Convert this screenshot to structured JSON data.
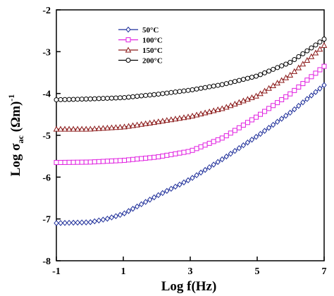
{
  "chart_data": {
    "type": "line",
    "xlabel": "Log f(Hz)",
    "ylabel_main": "Log σ",
    "ylabel_sub": "ac",
    "ylabel_unit": " (Ωm)",
    "ylabel_sup": "-1",
    "xlim": [
      -1,
      7
    ],
    "ylim": [
      -8,
      -2
    ],
    "x_ticks": [
      -1,
      1,
      3,
      5,
      7
    ],
    "y_ticks": [
      -8,
      -7,
      -6,
      -5,
      -4,
      -3,
      -2
    ],
    "grid": false,
    "legend_position": "top-left",
    "series": [
      {
        "name": "50°C",
        "color": "#1f2f9a",
        "marker": "diamond",
        "knots": [
          [
            -1,
            -7.1
          ],
          [
            0,
            -7.08
          ],
          [
            0.5,
            -7.0
          ],
          [
            1,
            -6.88
          ],
          [
            2,
            -6.45
          ],
          [
            3,
            -6.05
          ],
          [
            4,
            -5.55
          ],
          [
            5,
            -5.02
          ],
          [
            6,
            -4.45
          ],
          [
            7,
            -3.8
          ]
        ]
      },
      {
        "name": "100°C",
        "color": "#e020e0",
        "marker": "square",
        "knots": [
          [
            -1,
            -5.65
          ],
          [
            0,
            -5.64
          ],
          [
            1,
            -5.6
          ],
          [
            2,
            -5.52
          ],
          [
            3,
            -5.38
          ],
          [
            4,
            -5.05
          ],
          [
            5,
            -4.55
          ],
          [
            6,
            -4.0
          ],
          [
            7,
            -3.35
          ]
        ]
      },
      {
        "name": "150°C",
        "color": "#8b1a1a",
        "marker": "triangle",
        "knots": [
          [
            -1,
            -4.85
          ],
          [
            0,
            -4.85
          ],
          [
            1,
            -4.8
          ],
          [
            2,
            -4.68
          ],
          [
            3,
            -4.55
          ],
          [
            4,
            -4.35
          ],
          [
            5,
            -4.05
          ],
          [
            6,
            -3.55
          ],
          [
            7,
            -2.85
          ]
        ]
      },
      {
        "name": "200°C",
        "color": "#000000",
        "marker": "circle",
        "knots": [
          [
            -1,
            -4.15
          ],
          [
            0,
            -4.13
          ],
          [
            1,
            -4.1
          ],
          [
            2,
            -4.02
          ],
          [
            3,
            -3.92
          ],
          [
            4,
            -3.78
          ],
          [
            5,
            -3.58
          ],
          [
            6,
            -3.25
          ],
          [
            7,
            -2.7
          ]
        ]
      }
    ]
  }
}
